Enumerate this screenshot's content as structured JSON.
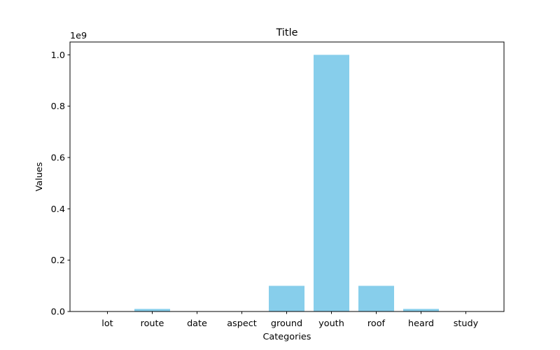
{
  "chart_data": {
    "type": "bar",
    "title": "Title",
    "xlabel": "Categories",
    "ylabel": "Values",
    "offset_label": "1e9",
    "categories": [
      "lot",
      "route",
      "date",
      "aspect",
      "ground",
      "youth",
      "roof",
      "heard",
      "study"
    ],
    "values": [
      1000,
      10000000,
      100,
      100000,
      100000000,
      1000000000,
      100000000,
      10000000,
      100
    ],
    "ylim": [
      0,
      1050000000
    ],
    "yticks": [
      0,
      200000000,
      400000000,
      600000000,
      800000000,
      1000000000
    ],
    "ytick_labels": [
      "0.0",
      "0.2",
      "0.4",
      "0.6",
      "0.8",
      "1.0"
    ],
    "bar_color": "#87ceeb",
    "grid": false,
    "legend": "none"
  }
}
